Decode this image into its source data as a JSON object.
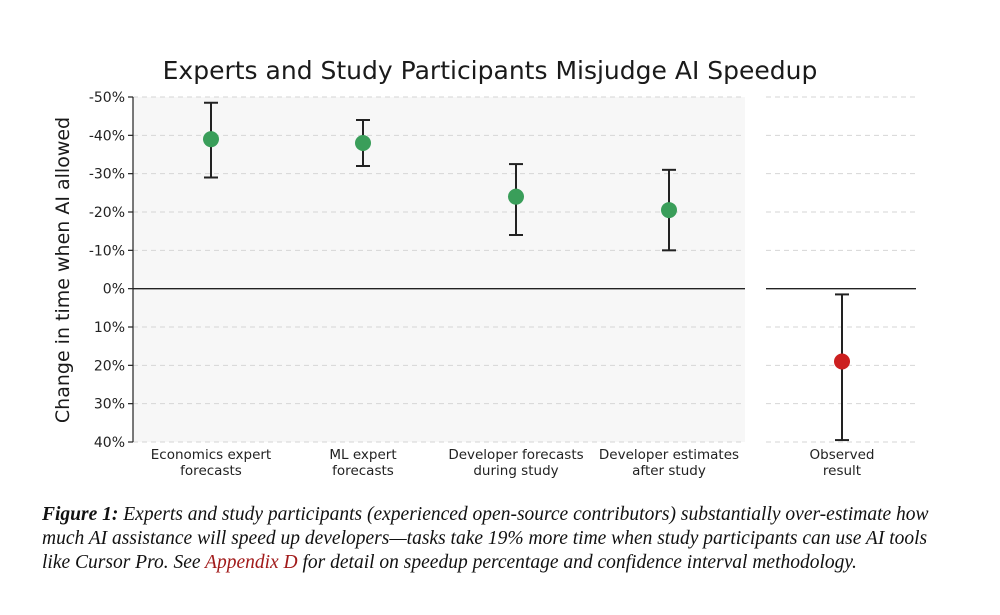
{
  "chart_data": {
    "type": "scatter",
    "title": "Experts and Study Participants Misjudge AI Speedup",
    "ylabel": "Change in time when AI allowed",
    "xlabel": "",
    "ylim": [
      -50,
      40
    ],
    "y_ticks": [
      -50,
      -40,
      -30,
      -20,
      -10,
      0,
      10,
      20,
      30,
      40
    ],
    "y_tick_labels": [
      "-50%",
      "-40%",
      "-30%",
      "-20%",
      "-10%",
      "0%",
      "10%",
      "20%",
      "30%",
      "40%"
    ],
    "grid": true,
    "panels": [
      {
        "name": "forecasts",
        "background": "#f7f7f7",
        "points": [
          {
            "label_lines": [
              "Economics expert",
              "forecasts"
            ],
            "value": -39,
            "ci_low": -48.5,
            "ci_high": -29,
            "color": "#3a9e5a"
          },
          {
            "label_lines": [
              "ML expert",
              "forecasts"
            ],
            "value": -38,
            "ci_low": -44,
            "ci_high": -32,
            "color": "#3a9e5a"
          },
          {
            "label_lines": [
              "Developer forecasts",
              "during study"
            ],
            "value": -24,
            "ci_low": -32.5,
            "ci_high": -14,
            "color": "#3a9e5a"
          },
          {
            "label_lines": [
              "Developer estimates",
              "after study"
            ],
            "value": -20.5,
            "ci_low": -31,
            "ci_high": -10,
            "color": "#3a9e5a"
          }
        ]
      },
      {
        "name": "observed",
        "background": "#ffffff",
        "points": [
          {
            "label_lines": [
              "Observed",
              "result"
            ],
            "value": 19,
            "ci_low": 1.5,
            "ci_high": 39.5,
            "color": "#cc1f1f"
          }
        ]
      }
    ]
  },
  "caption": {
    "figure_label": "Figure 1:",
    "text_before_link": " Experts and study participants (experienced open-source contributors) substantially over-estimate how much AI assistance will speed up developers—tasks take 19% more time when study participants can use AI tools like Cursor Pro. See ",
    "link_text": "Appendix D",
    "text_after_link": " for detail on speedup percentage and confidence interval methodology."
  }
}
